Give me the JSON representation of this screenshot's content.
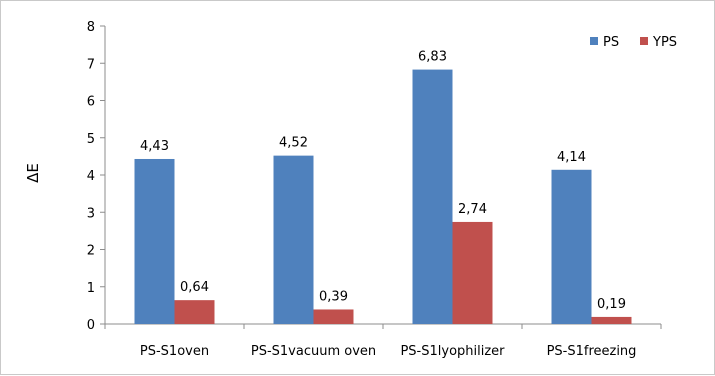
{
  "chart_data": {
    "type": "bar",
    "categories": [
      "PS-S1oven",
      "PS-S1vacuum oven",
      "PS-S1lyophilizer",
      "PS-S1freezing"
    ],
    "series": [
      {
        "name": "PS",
        "values": [
          4.43,
          4.52,
          6.83,
          4.14
        ],
        "labels": [
          "4,43",
          "4,52",
          "6,83",
          "4,14"
        ],
        "color": "#4f81bd"
      },
      {
        "name": "YPS",
        "values": [
          0.64,
          0.39,
          2.74,
          0.19
        ],
        "labels": [
          "0,64",
          "0,39",
          "2,74",
          "0,19"
        ],
        "color": "#c0504d"
      }
    ],
    "ylabel": "ΔE",
    "xlabel": "",
    "ylim": [
      0,
      8
    ],
    "yticks": [
      0,
      1,
      2,
      3,
      4,
      5,
      6,
      7,
      8
    ],
    "grid": false,
    "legend_position": "top-right"
  }
}
